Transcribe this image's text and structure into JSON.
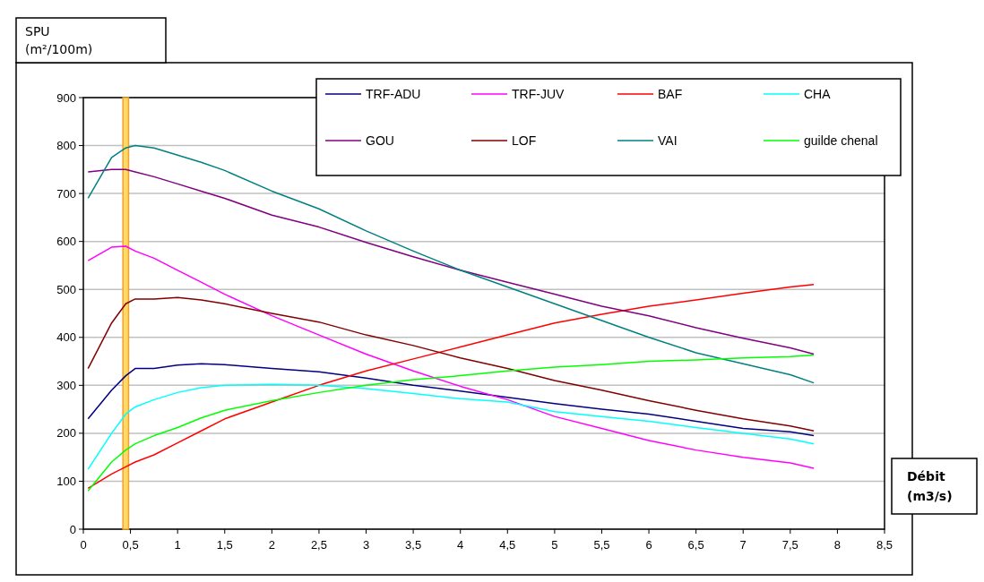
{
  "chart_data": {
    "type": "line",
    "xlabel": "Débit (m3/s)",
    "ylabel": "SPU (m²/100m)",
    "x": [
      0.05,
      0.3,
      0.45,
      0.55,
      0.75,
      1,
      1.25,
      1.5,
      2,
      2.5,
      3,
      3.5,
      4,
      4.5,
      5,
      5.5,
      6,
      6.5,
      7,
      7.5,
      7.75
    ],
    "series": [
      {
        "name": "TRF-ADU",
        "color": "#000080",
        "values": [
          230,
          290,
          320,
          335,
          335,
          342,
          345,
          343,
          335,
          328,
          315,
          300,
          288,
          275,
          262,
          250,
          240,
          225,
          210,
          203,
          195
        ]
      },
      {
        "name": "TRF-JUV",
        "color": "#ff00ff",
        "values": [
          560,
          588,
          590,
          580,
          565,
          540,
          515,
          490,
          445,
          405,
          365,
          330,
          298,
          270,
          235,
          210,
          185,
          165,
          150,
          138,
          127
        ]
      },
      {
        "name": "BAF",
        "color": "#ff0000",
        "values": [
          85,
          115,
          130,
          140,
          155,
          180,
          205,
          230,
          265,
          300,
          330,
          355,
          380,
          405,
          430,
          448,
          465,
          478,
          492,
          505,
          510
        ]
      },
      {
        "name": "CHA",
        "color": "#00ffff",
        "values": [
          125,
          200,
          240,
          255,
          270,
          285,
          295,
          300,
          302,
          300,
          293,
          283,
          272,
          265,
          245,
          235,
          225,
          212,
          200,
          188,
          178
        ]
      },
      {
        "name": "GOU",
        "color": "#800080",
        "values": [
          745,
          750,
          750,
          745,
          735,
          720,
          705,
          690,
          655,
          630,
          598,
          568,
          540,
          515,
          490,
          465,
          445,
          420,
          398,
          378,
          365
        ]
      },
      {
        "name": "LOF",
        "color": "#800000",
        "values": [
          335,
          430,
          470,
          480,
          480,
          483,
          478,
          470,
          450,
          432,
          405,
          383,
          357,
          335,
          310,
          290,
          268,
          248,
          230,
          215,
          205
        ]
      },
      {
        "name": "VAI",
        "color": "#008080",
        "values": [
          690,
          775,
          795,
          800,
          795,
          780,
          765,
          748,
          705,
          668,
          622,
          580,
          540,
          505,
          470,
          435,
          400,
          368,
          345,
          322,
          305
        ]
      },
      {
        "name": "guilde chenal",
        "color": "#00ff00",
        "values": [
          80,
          140,
          165,
          178,
          195,
          212,
          232,
          248,
          268,
          285,
          300,
          312,
          320,
          330,
          338,
          343,
          350,
          353,
          357,
          360,
          363
        ]
      }
    ],
    "xlim": [
      0,
      8.5
    ],
    "xticks": [
      0,
      {
        "value": 0.5,
        "label": "0,5"
      },
      1,
      {
        "value": 1.5,
        "label": "1,5"
      },
      2,
      {
        "value": 2.5,
        "label": "2,5"
      },
      3,
      {
        "value": 3.5,
        "label": "3,5"
      },
      4,
      {
        "value": 4.5,
        "label": "4,5"
      },
      5,
      {
        "value": 5.5,
        "label": "5,5"
      },
      6,
      {
        "value": 6.5,
        "label": "6,5"
      },
      7,
      {
        "value": 7.5,
        "label": "7,5"
      },
      8,
      {
        "value": 8.5,
        "label": "8,5"
      }
    ],
    "ylim": [
      0,
      900
    ],
    "yticks": [
      0,
      100,
      200,
      300,
      400,
      500,
      600,
      700,
      800,
      900
    ],
    "grid": "y",
    "legend": "top right",
    "marker": "none",
    "line_style": "solid",
    "bands": [
      {
        "axis": "x",
        "from": 0.42,
        "to": 0.48,
        "color": "#ffd966"
      }
    ]
  }
}
